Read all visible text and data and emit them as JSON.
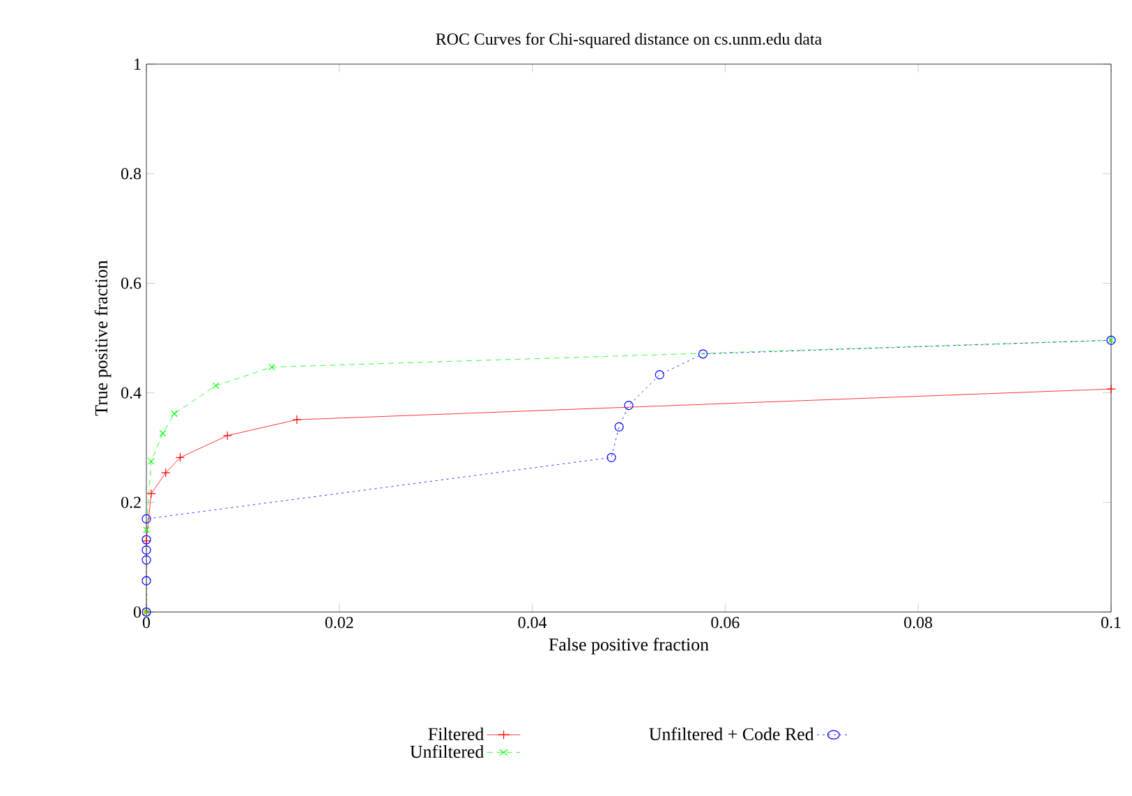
{
  "chart_data": {
    "type": "line",
    "title": "ROC Curves for Chi-squared distance on cs.unm.edu data",
    "xlabel": "False positive fraction",
    "ylabel": "True positive fraction",
    "xlim": [
      0,
      0.1
    ],
    "ylim": [
      0,
      1
    ],
    "xticks": [
      0,
      0.02,
      0.04,
      0.06,
      0.08,
      0.1
    ],
    "yticks": [
      0,
      0.2,
      0.4,
      0.6,
      0.8,
      1
    ],
    "grid": false,
    "legend": "bottom",
    "series": [
      {
        "name": "Filtered",
        "color": "#ff0000",
        "line_style": "solid",
        "marker": "plus",
        "x": [
          0,
          0,
          0.0005,
          0.002,
          0.0035,
          0.0084,
          0.0156,
          0.1
        ],
        "values": [
          0,
          0.13,
          0.216,
          0.254,
          0.282,
          0.322,
          0.351,
          0.407
        ]
      },
      {
        "name": "Unfiltered",
        "color": "#00ff00",
        "line_style": "dashed",
        "marker": "cross",
        "x": [
          0,
          0,
          0.0005,
          0.0017,
          0.0029,
          0.0072,
          0.013,
          0.1
        ],
        "values": [
          0,
          0.15,
          0.275,
          0.326,
          0.362,
          0.413,
          0.447,
          0.496
        ]
      },
      {
        "name": "Unfiltered + Code Red",
        "color": "#0000ff",
        "line_style": "dotted",
        "marker": "circle",
        "x": [
          0,
          0,
          0,
          0,
          0,
          0,
          0.0482,
          0.049,
          0.05,
          0.0532,
          0.0577,
          0.1
        ],
        "values": [
          0,
          0.057,
          0.095,
          0.113,
          0.132,
          0.17,
          0.282,
          0.338,
          0.377,
          0.433,
          0.471,
          0.496
        ]
      }
    ]
  }
}
